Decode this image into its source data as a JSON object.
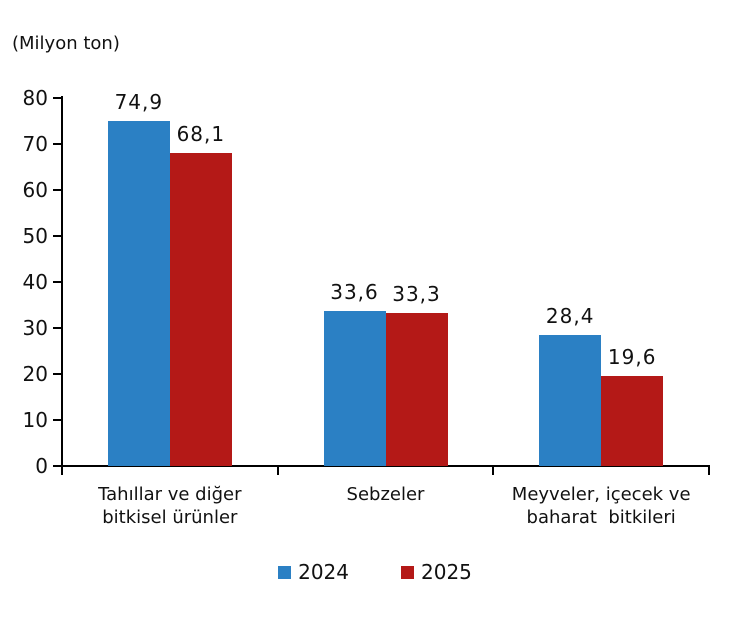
{
  "chart_data": {
    "type": "bar",
    "title": "",
    "unit_label": "(Milyon ton)",
    "categories": [
      "Tahıllar ve diğer\nbitkisel ürünler",
      "Sebzeler",
      "Meyveler, içecek ve\nbaharat  bitkileri"
    ],
    "series": [
      {
        "name": "2024",
        "color": "#2B80C4",
        "values": [
          74.9,
          33.6,
          28.4
        ],
        "labels": [
          "74,9",
          "33,6",
          "28,4"
        ]
      },
      {
        "name": "2025",
        "color": "#B41917",
        "values": [
          68.1,
          33.3,
          19.6
        ],
        "labels": [
          "68,1",
          "33,3",
          "19,6"
        ]
      }
    ],
    "ylim": [
      0,
      80
    ],
    "yticks": [
      0,
      10,
      20,
      30,
      40,
      50,
      60,
      70,
      80
    ],
    "ytick_labels": [
      "0",
      "10",
      "20",
      "30",
      "40",
      "50",
      "60",
      "70",
      "80"
    ],
    "xlabel": "",
    "ylabel": "",
    "grid": false,
    "legend_position": "bottom",
    "axis_color": "#000000",
    "text_color": "#111111"
  }
}
